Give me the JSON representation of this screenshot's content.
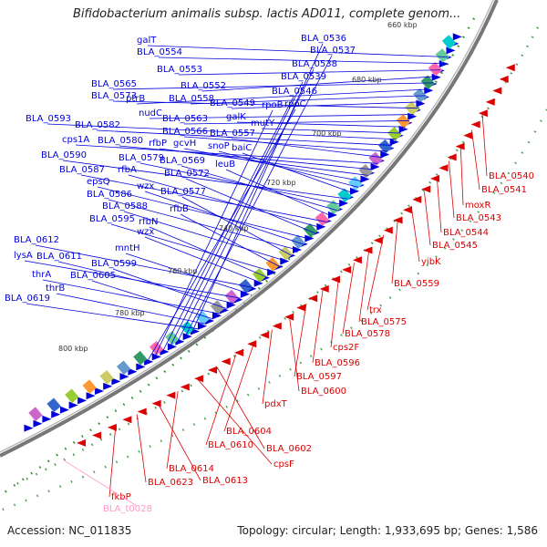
{
  "title": "Bifidobacterium animalis subsp. lactis AD011, complete genom...",
  "accession": "Accession: NC_011835",
  "summary": "Topology: circular; Length: 1,933,695 bp; Genes: 1,586",
  "colors": {
    "forward": "#0000dd",
    "reverse": "#dd0000",
    "rna": "#ff99cc",
    "backbone": "#888888"
  },
  "kbp_marks": [
    "660 kbp",
    "680 kbp",
    "700 kbp",
    "720 kbp",
    "740 kbp",
    "760 kbp",
    "780 kbp",
    "800 kbp"
  ],
  "forward_labels": [
    "galT",
    "BLA_0554",
    "BLA_0553",
    "BLA_0552",
    "BLA_0565",
    "ptrB",
    "BLA_0558",
    "BLA_0549",
    "BLA_0573",
    "nudC",
    "BLA_0563",
    "galK",
    "mutY",
    "BLA_0593",
    "BLA_0582",
    "BLA_0566",
    "BLA_0557",
    "cps1A",
    "BLA_0580",
    "rfbP",
    "gcvH",
    "snoP",
    "baiC",
    "BLA_0590",
    "BLA_0579",
    "BLA_0569",
    "leuB",
    "BLA_0587",
    "rfbA",
    "BLA_0572",
    "epsQ",
    "wzx",
    "BLA_0586",
    "BLA_0577",
    "BLA_0588",
    "rfbB",
    "BLA_0595",
    "rfbN",
    "wzx",
    "BLA_0612",
    "mntH",
    "lysA",
    "BLA_0611",
    "BLA_0599",
    "thrA",
    "BLA_0605",
    "thrB",
    "BLA_0619",
    "BLA_0536",
    "BLA_0537",
    "BLA_0538",
    "BLA_0539",
    "BLA_0546",
    "rpoB",
    "rpoC"
  ],
  "reverse_labels": [
    "BLA_0540",
    "BLA_0541",
    "moxR",
    "BLA_0543",
    "BLA_0544",
    "BLA_0545",
    "yibK",
    "BLA_0559",
    "trx",
    "BLA_0575",
    "BLA_0578",
    "cps2F",
    "BLA_0596",
    "BLA_0597",
    "BLA_0600",
    "pdxT",
    "BLA_0604",
    "BLA_0610",
    "BLA_0602",
    "cpsF",
    "BLA_0614",
    "BLA_0613",
    "BLA_0623",
    "fkbP"
  ],
  "rna_labels": [
    "BLA_t0028"
  ]
}
